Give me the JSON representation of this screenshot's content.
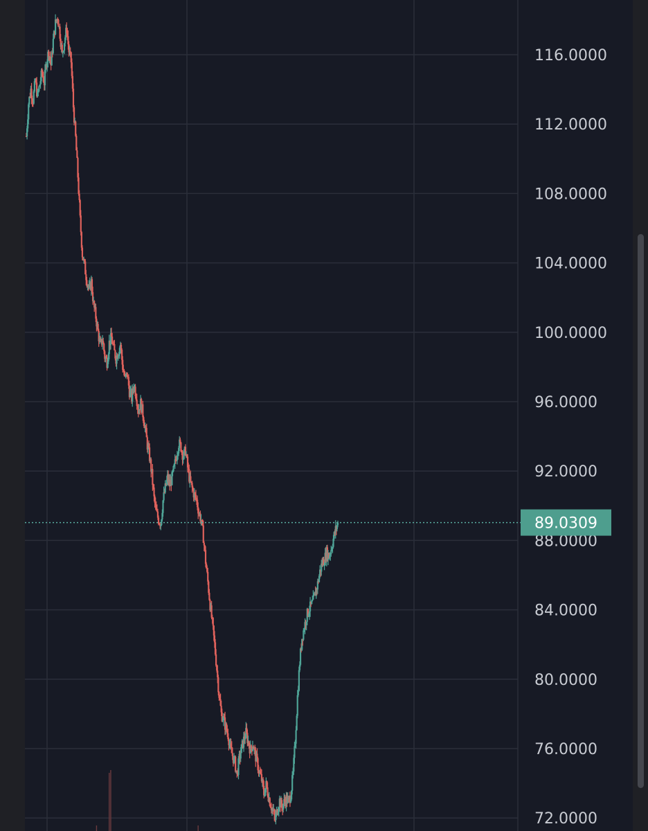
{
  "colors": {
    "background": "#171a25",
    "frame": "#1f2025",
    "grid": "#2b2e3a",
    "up": "#4fa497",
    "down": "#e0625c",
    "price_line": "#5bb0a4",
    "price_tag_bg": "#4e9e8e",
    "axis_text": "#c8cbd2"
  },
  "chart_data": {
    "type": "candlestick",
    "y_axis": {
      "ticks": [
        "116.0000",
        "112.0000",
        "108.0000",
        "104.0000",
        "100.0000",
        "96.0000",
        "92.0000",
        "88.0000",
        "84.0000",
        "80.0000",
        "76.0000",
        "72.0000"
      ],
      "tick_values": [
        116,
        112,
        108,
        104,
        100,
        96,
        92,
        88,
        84,
        80,
        76,
        72
      ],
      "visible_range": [
        71.3,
        119.0
      ],
      "position": "right"
    },
    "current_price": {
      "label": "89.0309",
      "value": 89.0309
    },
    "series": [
      {
        "close_path": [
          [
            0,
            111.3
          ],
          [
            3,
            113.2
          ],
          [
            6,
            114.0
          ],
          [
            9,
            113.4
          ],
          [
            12,
            114.5
          ],
          [
            15,
            113.6
          ],
          [
            18,
            114.3
          ],
          [
            21,
            115.0
          ],
          [
            24,
            114.4
          ],
          [
            27,
            115.6
          ],
          [
            30,
            116.2
          ],
          [
            33,
            115.4
          ],
          [
            36,
            116.8
          ],
          [
            39,
            117.8
          ],
          [
            42,
            118.2
          ],
          [
            45,
            117.2
          ],
          [
            48,
            116.0
          ],
          [
            51,
            116.8
          ],
          [
            54,
            117.5
          ],
          [
            57,
            116.2
          ],
          [
            60,
            115.6
          ],
          [
            63,
            113.0
          ],
          [
            66,
            111.2
          ],
          [
            69,
            109.0
          ],
          [
            72,
            106.5
          ],
          [
            75,
            104.5
          ],
          [
            78,
            103.8
          ],
          [
            81,
            103.0
          ],
          [
            84,
            102.4
          ],
          [
            87,
            102.9
          ],
          [
            90,
            101.6
          ],
          [
            93,
            100.9
          ],
          [
            96,
            100.0
          ],
          [
            99,
            99.2
          ],
          [
            102,
            99.6
          ],
          [
            105,
            98.6
          ],
          [
            108,
            98.3
          ],
          [
            111,
            99.4
          ],
          [
            114,
            99.7
          ],
          [
            117,
            99.0
          ],
          [
            120,
            98.5
          ],
          [
            123,
            98.9
          ],
          [
            126,
            99.3
          ],
          [
            129,
            98.0
          ],
          [
            132,
            97.3
          ],
          [
            135,
            97.6
          ],
          [
            138,
            96.6
          ],
          [
            141,
            96.2
          ],
          [
            144,
            97.0
          ],
          [
            147,
            96.4
          ],
          [
            150,
            95.5
          ],
          [
            153,
            95.9
          ],
          [
            156,
            95.3
          ],
          [
            159,
            94.5
          ],
          [
            162,
            93.5
          ],
          [
            165,
            92.8
          ],
          [
            168,
            91.8
          ],
          [
            171,
            90.4
          ],
          [
            174,
            89.6
          ],
          [
            177,
            89.2
          ],
          [
            180,
            89.0
          ],
          [
            183,
            90.3
          ],
          [
            186,
            91.0
          ],
          [
            189,
            91.6
          ],
          [
            192,
            91.2
          ],
          [
            195,
            91.6
          ],
          [
            198,
            92.2
          ],
          [
            201,
            92.9
          ],
          [
            204,
            93.6
          ],
          [
            207,
            93.4
          ],
          [
            210,
            92.8
          ],
          [
            213,
            93.2
          ],
          [
            216,
            92.2
          ],
          [
            219,
            91.4
          ],
          [
            222,
            91.0
          ],
          [
            225,
            90.6
          ],
          [
            228,
            90.3
          ],
          [
            231,
            89.6
          ],
          [
            234,
            89.2
          ],
          [
            237,
            88.2
          ],
          [
            240,
            86.8
          ],
          [
            243,
            85.6
          ],
          [
            246,
            84.3
          ],
          [
            249,
            83.2
          ],
          [
            252,
            82.0
          ],
          [
            255,
            80.6
          ],
          [
            258,
            79.1
          ],
          [
            261,
            78.0
          ],
          [
            264,
            77.7
          ],
          [
            267,
            77.2
          ],
          [
            270,
            76.8
          ],
          [
            273,
            76.0
          ],
          [
            276,
            75.6
          ],
          [
            279,
            75.2
          ],
          [
            282,
            74.5
          ],
          [
            285,
            75.4
          ],
          [
            288,
            76.0
          ],
          [
            291,
            76.5
          ],
          [
            294,
            76.9
          ],
          [
            297,
            76.4
          ],
          [
            300,
            75.9
          ],
          [
            303,
            76.3
          ],
          [
            306,
            75.7
          ],
          [
            309,
            75.2
          ],
          [
            312,
            74.6
          ],
          [
            315,
            74.2
          ],
          [
            318,
            73.4
          ],
          [
            321,
            73.9
          ],
          [
            324,
            73.3
          ],
          [
            327,
            72.8
          ],
          [
            330,
            72.4
          ],
          [
            333,
            71.9
          ],
          [
            336,
            72.5
          ],
          [
            339,
            73.0
          ],
          [
            342,
            72.6
          ],
          [
            345,
            72.9
          ],
          [
            348,
            73.1
          ],
          [
            351,
            72.9
          ],
          [
            354,
            73.4
          ],
          [
            357,
            74.5
          ],
          [
            360,
            76.5
          ],
          [
            363,
            79.0
          ],
          [
            366,
            81.0
          ],
          [
            369,
            82.4
          ],
          [
            372,
            83.0
          ],
          [
            375,
            83.6
          ],
          [
            378,
            84.0
          ],
          [
            381,
            84.2
          ],
          [
            384,
            84.5
          ],
          [
            387,
            85.0
          ],
          [
            390,
            85.5
          ],
          [
            393,
            86.2
          ],
          [
            396,
            86.7
          ],
          [
            399,
            86.9
          ],
          [
            402,
            87.3
          ],
          [
            405,
            87.1
          ],
          [
            408,
            87.5
          ],
          [
            411,
            88.1
          ],
          [
            414,
            88.6
          ],
          [
            417,
            89.0309
          ]
        ]
      }
    ],
    "volume_spikes": [
      {
        "x": 94,
        "height": 8
      },
      {
        "x": 111,
        "height": 84
      },
      {
        "x": 113,
        "height": 88
      },
      {
        "x": 230,
        "height": 8
      }
    ],
    "grid": true
  }
}
